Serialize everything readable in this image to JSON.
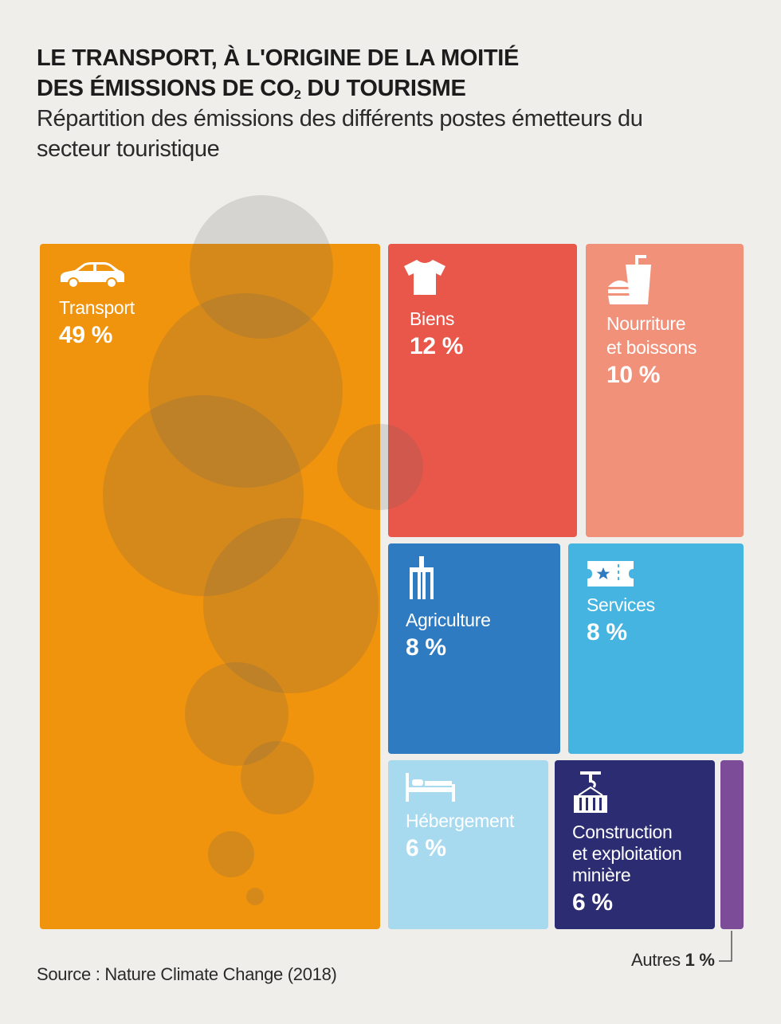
{
  "title_line1": "LE TRANSPORT, À L'ORIGINE DE LA MOITIÉ",
  "title_line2_a": "DES ÉMISSIONS DE CO",
  "title_line2_sub": "2",
  "title_line2_b": " DU TOURISME",
  "subtitle": "Répartition des émissions des différents postes émetteurs du secteur touristique",
  "source": "Source : Nature Climate Change (2018)",
  "chart_data": {
    "type": "treemap",
    "title": "LE TRANSPORT, À L'ORIGINE DE LA MOITIÉ DES ÉMISSIONS DE CO2 DU TOURISME",
    "subtitle": "Répartition des émissions des différents postes émetteurs du secteur touristique",
    "unit": "%",
    "categories": [
      {
        "name": "Transport",
        "value": 49,
        "display": "49 %",
        "color": "#f0930d",
        "icon": "car-icon"
      },
      {
        "name": "Biens",
        "value": 12,
        "display": "12 %",
        "color": "#e9574a",
        "icon": "tshirt-icon"
      },
      {
        "name": "Nourriture et boissons",
        "value": 10,
        "display": "10 %",
        "color": "#f2917a",
        "icon": "food-drink-icon"
      },
      {
        "name": "Agriculture",
        "value": 8,
        "display": "8 %",
        "color": "#2f7bc1",
        "icon": "fork-icon"
      },
      {
        "name": "Services",
        "value": 8,
        "display": "8 %",
        "color": "#45b4e0",
        "icon": "ticket-icon"
      },
      {
        "name": "Hébergement",
        "value": 6,
        "display": "6 %",
        "color": "#a7d9ef",
        "icon": "bed-icon"
      },
      {
        "name": "Construction et exploitation minière",
        "value": 6,
        "display": "6 %",
        "color": "#2c2c72",
        "icon": "crane-container-icon"
      },
      {
        "name": "Autres",
        "value": 1,
        "display": "1 %",
        "color": "#7c4c98",
        "icon": ""
      }
    ]
  },
  "labels": {
    "transport": "Transport",
    "biens": "Biens",
    "nourriture_1": "Nourriture",
    "nourriture_2": "et boissons",
    "agriculture": "Agriculture",
    "services": "Services",
    "hebergement": "Hébergement",
    "construction_1": "Construction",
    "construction_2": "et exploitation",
    "construction_3": "minière",
    "autres": "Autres"
  },
  "values": {
    "transport": "49 %",
    "biens": "12 %",
    "nourriture": "10 %",
    "agriculture": "8 %",
    "services": "8 %",
    "hebergement": "6 %",
    "construction": "6 %",
    "autres": "1 %"
  }
}
